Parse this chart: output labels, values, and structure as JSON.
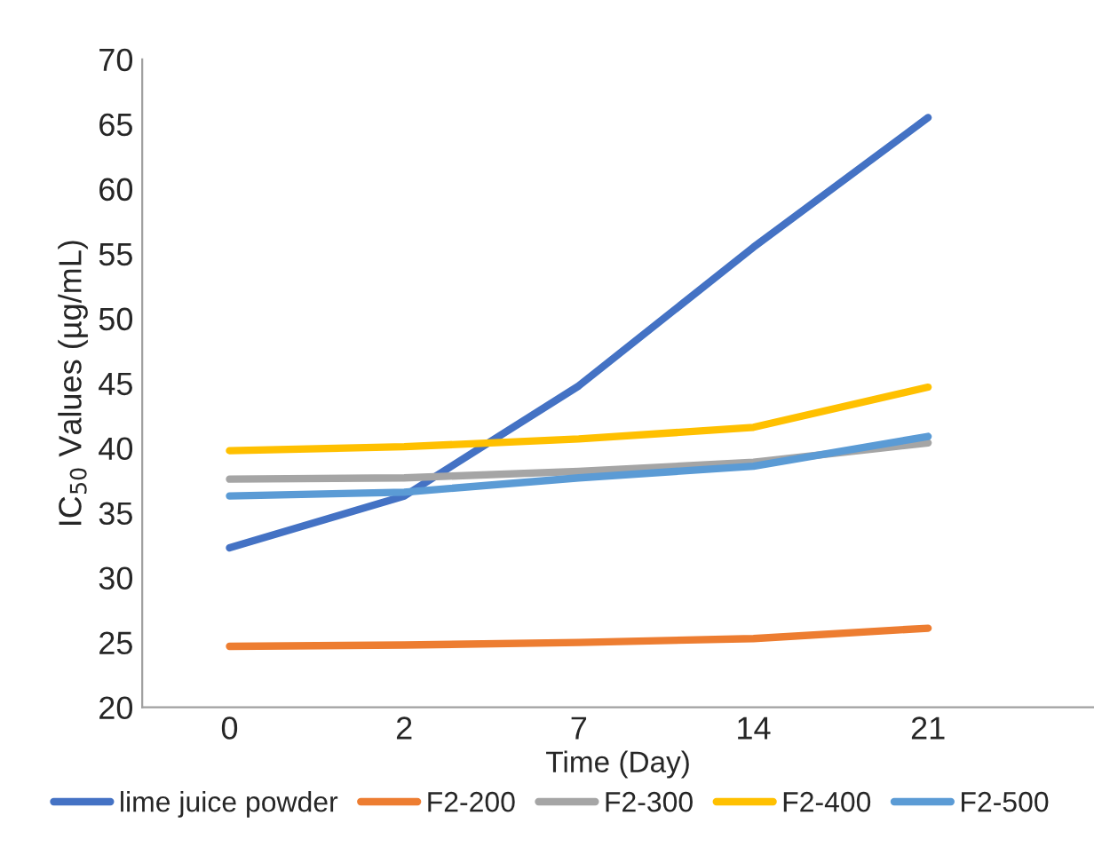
{
  "chart_data": {
    "type": "line",
    "xlabel": "Time (Day)",
    "ylabel": "IC$_{50}$ Values (µg/mL)",
    "categories": [
      "0",
      "2",
      "7",
      "14",
      "21"
    ],
    "ylim": [
      20,
      70
    ],
    "yticks": [
      20,
      25,
      30,
      35,
      40,
      45,
      50,
      55,
      60,
      65,
      70
    ],
    "grid": false,
    "legend": "bottom",
    "marker": "none",
    "line_style": "solid",
    "series": [
      {
        "name": "lime juice powder",
        "color": "#4472c4",
        "values": [
          32.3,
          36.3,
          44.8,
          55.5,
          65.5
        ]
      },
      {
        "name": "F2-200",
        "color": "#ed7d31",
        "values": [
          24.7,
          24.8,
          25.0,
          25.3,
          26.1
        ]
      },
      {
        "name": "F2-300",
        "color": "#a5a5a5",
        "values": [
          37.6,
          37.7,
          38.2,
          38.9,
          40.4
        ]
      },
      {
        "name": "F2-400",
        "color": "#ffc000",
        "values": [
          39.8,
          40.1,
          40.7,
          41.6,
          44.7
        ]
      },
      {
        "name": "F2-500",
        "color": "#5b9bd5",
        "values": [
          36.3,
          36.6,
          37.7,
          38.6,
          40.9
        ]
      }
    ]
  }
}
